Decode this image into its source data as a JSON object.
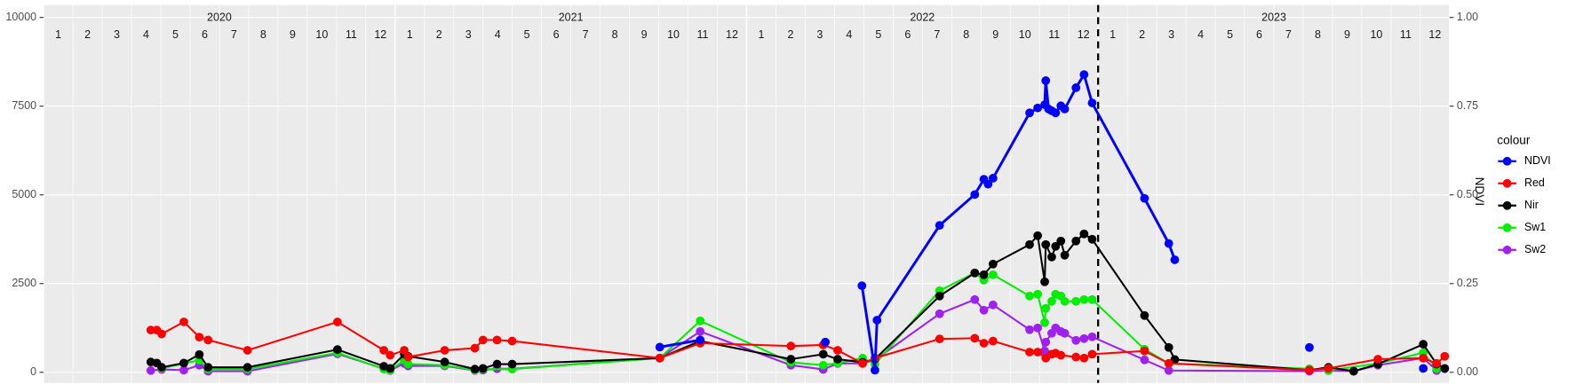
{
  "chart_data": {
    "type": "line",
    "years": [
      "2020",
      "2021",
      "2022",
      "2023"
    ],
    "months": [
      "1",
      "2",
      "3",
      "4",
      "5",
      "6",
      "7",
      "8",
      "9",
      "10",
      "11",
      "12"
    ],
    "y2label": "NDVI",
    "legend_title": "colour",
    "xlim": [
      2020,
      2024
    ],
    "ylim": [
      -300,
      10350
    ],
    "yticks": [
      0,
      2500,
      5000,
      7500,
      10000
    ],
    "y2lim": [
      -0.03,
      1.035
    ],
    "y2ticks": [
      {
        "value": 0,
        "label": "0.00"
      },
      {
        "value": 0.25,
        "label": "0.25"
      },
      {
        "value": 0.5,
        "label": "0.50"
      },
      {
        "value": 0.75,
        "label": "0.75"
      },
      {
        "value": 1,
        "label": "1.00"
      }
    ],
    "vline": 2023.0,
    "grid": true,
    "series": [
      {
        "name": "NDVI",
        "color": "#0000ff",
        "axis": "y2",
        "x": [
          2021.753,
          2021.868,
          null,
          2022.224,
          null,
          2022.328,
          2022.365,
          2022.371,
          2022.549,
          2022.649,
          2022.675,
          2022.687,
          2022.701,
          2022.805,
          2022.828,
          2022.848,
          2022.851,
          2022.859,
          2022.868,
          2022.879,
          2022.894,
          2022.905,
          2022.937,
          2022.96,
          2022.983,
          2023.132,
          2023.201,
          2023.218,
          null,
          2023.601,
          null,
          2023.925
        ],
        "values": [
          0.071,
          0.091,
          null,
          0.085,
          null,
          0.244,
          0.006,
          0.147,
          0.414,
          0.501,
          0.544,
          0.53,
          0.547,
          0.731,
          0.745,
          0.754,
          0.822,
          0.742,
          0.737,
          0.731,
          0.751,
          0.742,
          0.802,
          0.839,
          0.759,
          0.49,
          0.363,
          0.317,
          null,
          0.07,
          null,
          0.011
        ]
      },
      {
        "name": "Red",
        "color": "#ff0000",
        "x": [
          2020.305,
          2020.322,
          2020.336,
          2020.399,
          2020.443,
          2020.468,
          2020.58,
          2020.836,
          2020.968,
          2020.986,
          2021.026,
          2021.037,
          2021.141,
          2021.227,
          2021.25,
          2021.29,
          2021.333,
          2021.753,
          2021.868,
          2022.126,
          2022.218,
          2022.259,
          2022.33,
          2022.365,
          2022.549,
          2022.649,
          2022.675,
          2022.701,
          2022.805,
          2022.828,
          2022.851,
          2022.868,
          2022.879,
          2022.894,
          2022.937,
          2022.96,
          2022.983,
          2023.132,
          2023.201,
          2023.601,
          2023.655,
          2023.796,
          2023.925,
          2023.963,
          2023.986
        ],
        "values": [
          1190,
          1190,
          1080,
          1420,
          990,
          910,
          620,
          1420,
          620,
          480,
          620,
          430,
          620,
          680,
          910,
          910,
          880,
          400,
          820,
          740,
          770,
          620,
          250,
          400,
          940,
          960,
          820,
          880,
          570,
          570,
          400,
          510,
          540,
          480,
          430,
          400,
          510,
          600,
          250,
          60,
          110,
          370,
          400,
          250,
          450
        ]
      },
      {
        "name": "Nir",
        "color": "#000000",
        "x": [
          2020.305,
          2020.322,
          2020.336,
          2020.399,
          2020.443,
          2020.468,
          2020.58,
          2020.836,
          2020.968,
          2020.986,
          2021.026,
          2021.037,
          2021.141,
          2021.227,
          2021.25,
          2021.29,
          2021.333,
          2021.753,
          2021.868,
          2022.126,
          2022.218,
          2022.259,
          2022.33,
          2022.365,
          2022.549,
          2022.649,
          2022.675,
          2022.701,
          2022.805,
          2022.828,
          2022.848,
          2022.851,
          2022.868,
          2022.879,
          2022.894,
          2022.905,
          2022.937,
          2022.96,
          2022.983,
          2023.132,
          2023.201,
          2023.218,
          2023.601,
          2023.655,
          2023.727,
          2023.796,
          2023.925,
          2023.963,
          2023.986
        ],
        "values": [
          290,
          260,
          140,
          260,
          500,
          140,
          140,
          640,
          170,
          110,
          510,
          450,
          290,
          90,
          110,
          230,
          230,
          400,
          880,
          370,
          510,
          370,
          280,
          370,
          2150,
          2800,
          2750,
          3050,
          3600,
          3850,
          2550,
          3600,
          3250,
          3550,
          3700,
          3300,
          3700,
          3900,
          3750,
          1600,
          700,
          360,
          60,
          140,
          30,
          230,
          790,
          230,
          110
        ]
      },
      {
        "name": "Sw1",
        "color": "#00ee00",
        "x": [
          2020.336,
          2020.443,
          2020.468,
          2020.58,
          2020.836,
          2020.968,
          2020.986,
          2021.026,
          2021.037,
          2021.141,
          2021.227,
          2021.25,
          2021.333,
          2021.753,
          2021.868,
          2022.126,
          2022.218,
          2022.259,
          2022.33,
          2022.365,
          2022.549,
          2022.649,
          2022.675,
          2022.701,
          2022.805,
          2022.828,
          2022.848,
          2022.851,
          2022.868,
          2022.879,
          2022.894,
          2022.905,
          2022.937,
          2022.96,
          2022.983,
          2023.132,
          2023.201,
          2023.601,
          2023.655,
          2023.796,
          2023.925,
          2023.963
        ],
        "values": [
          110,
          340,
          90,
          90,
          550,
          90,
          60,
          340,
          230,
          200,
          60,
          90,
          90,
          400,
          1450,
          280,
          200,
          260,
          400,
          230,
          2300,
          2800,
          2600,
          2750,
          2150,
          2200,
          1400,
          1800,
          2000,
          2200,
          2150,
          2000,
          2000,
          2050,
          2050,
          650,
          250,
          100,
          50,
          250,
          550,
          100
        ]
      },
      {
        "name": "Sw2",
        "color": "#a020f0",
        "x": [
          2020.305,
          2020.336,
          2020.399,
          2020.443,
          2020.468,
          2020.58,
          2020.836,
          2020.968,
          2020.986,
          2021.026,
          2021.037,
          2021.141,
          2021.227,
          2021.25,
          2021.29,
          2021.333,
          2021.753,
          2021.868,
          2022.126,
          2022.218,
          2022.259,
          2022.33,
          2022.365,
          2022.549,
          2022.649,
          2022.675,
          2022.701,
          2022.805,
          2022.828,
          2022.848,
          2022.851,
          2022.868,
          2022.879,
          2022.894,
          2022.905,
          2022.937,
          2022.96,
          2022.983,
          2023.132,
          2023.201,
          2023.601,
          2023.655,
          2023.727,
          2023.796,
          2023.925,
          2023.963,
          2023.986
        ],
        "values": [
          50,
          80,
          60,
          200,
          30,
          30,
          520,
          100,
          50,
          250,
          180,
          180,
          50,
          60,
          100,
          100,
          400,
          1150,
          200,
          80,
          250,
          250,
          350,
          1650,
          2050,
          1750,
          1900,
          1200,
          1250,
          600,
          850,
          1100,
          1250,
          1150,
          1100,
          900,
          950,
          1000,
          350,
          50,
          30,
          50,
          30,
          200,
          400,
          50,
          100
        ]
      }
    ]
  }
}
